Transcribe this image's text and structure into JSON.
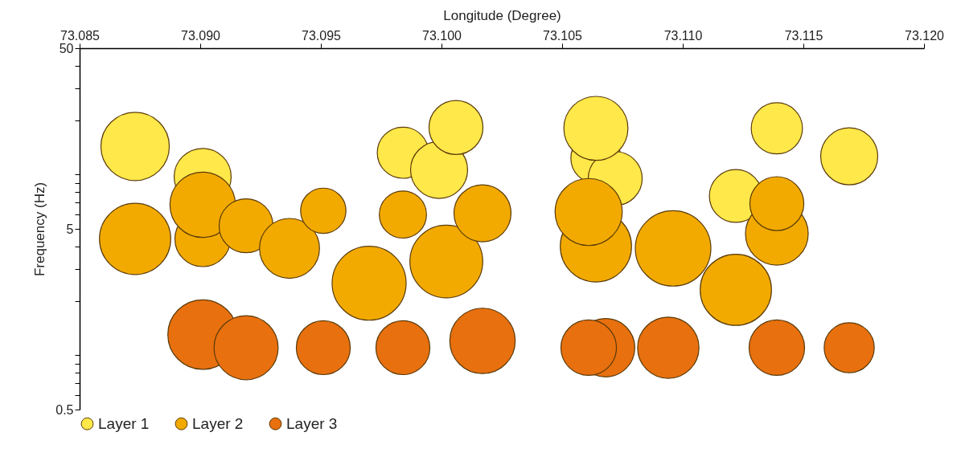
{
  "chart_data": {
    "type": "bubble",
    "xlabel": "Longitude (Degree)",
    "ylabel": "Frequency (Hz)",
    "log": "y",
    "grid": false,
    "legend": "bottom",
    "xlim": [
      73.085,
      73.12
    ],
    "xticks": [
      {
        "value": 73.085,
        "label": "73.085"
      },
      {
        "value": 73.09,
        "label": "73.090"
      },
      {
        "value": 73.095,
        "label": "73.095"
      },
      {
        "value": 73.1,
        "label": "73.100"
      },
      {
        "value": 73.105,
        "label": "73.105"
      },
      {
        "value": 73.11,
        "label": "73.110"
      },
      {
        "value": 73.115,
        "label": "73.115"
      },
      {
        "value": 73.12,
        "label": "73.120"
      }
    ],
    "ylim": [
      0.5,
      50
    ],
    "yticks": [
      0.5,
      {
        "value": 0.6,
        "label": null
      },
      {
        "value": 0.7,
        "label": null
      },
      {
        "value": 0.8,
        "label": null
      },
      {
        "value": 0.9,
        "label": null
      },
      {
        "value": 1,
        "label": null
      },
      {
        "value": 2,
        "label": null
      },
      {
        "value": 3,
        "label": null
      },
      {
        "value": 4,
        "label": null
      },
      5,
      {
        "value": 6,
        "label": null
      },
      {
        "value": 7,
        "label": null
      },
      {
        "value": 8,
        "label": null
      },
      {
        "value": 9,
        "label": null
      },
      {
        "value": 10,
        "label": null
      },
      {
        "value": 20,
        "label": null
      },
      {
        "value": 30,
        "label": null
      },
      {
        "value": 40,
        "label": null
      },
      50
    ],
    "series": [
      {
        "name": "Layer 1",
        "color": "#ffe84a",
        "x": [
          73.0873,
          73.0901,
          73.0984,
          73.0999,
          73.1006,
          73.1064,
          73.1072,
          73.1064,
          73.1122,
          73.1139,
          73.1169
        ],
        "values": [
          14.3,
          9.7,
          13.2,
          10.6,
          18.2,
          12.3,
          9.5,
          18.0,
          7.6,
          18.0,
          12.6
        ],
        "sizes": [
          0.82,
          0.57,
          0.46,
          0.57,
          0.51,
          0.44,
          0.51,
          0.72,
          0.49,
          0.46,
          0.57
        ]
      },
      {
        "name": "Layer 2",
        "color": "#f2aa00",
        "x": [
          73.0873,
          73.0901,
          73.0901,
          73.0919,
          73.0937,
          73.0951,
          73.097,
          73.0984,
          73.1002,
          73.1017,
          73.1064,
          73.1061,
          73.1096,
          73.1122,
          73.1139,
          73.1139
        ],
        "values": [
          4.4,
          4.4,
          6.8,
          5.2,
          3.9,
          6.3,
          2.5,
          6.0,
          3.3,
          6.1,
          4.0,
          6.2,
          3.9,
          2.3,
          4.7,
          6.9
        ],
        "sizes": [
          0.89,
          0.54,
          0.75,
          0.51,
          0.63,
          0.36,
          0.96,
          0.39,
          0.93,
          0.57,
          0.89,
          0.79,
          1,
          0.89,
          0.69,
          0.51
        ]
      },
      {
        "name": "Layer 3",
        "color": "#e8700f",
        "x": [
          73.0901,
          73.0919,
          73.0951,
          73.0984,
          73.1017,
          73.1068,
          73.1061,
          73.1094,
          73.1139,
          73.1169
        ],
        "values": [
          1.3,
          1.1,
          1.1,
          1.1,
          1.2,
          1.1,
          1.1,
          1.1,
          1.1,
          1.1
        ],
        "sizes": [
          0.85,
          0.72,
          0.51,
          0.51,
          0.75,
          0.6,
          0.54,
          0.66,
          0.54,
          0.44
        ]
      }
    ]
  }
}
